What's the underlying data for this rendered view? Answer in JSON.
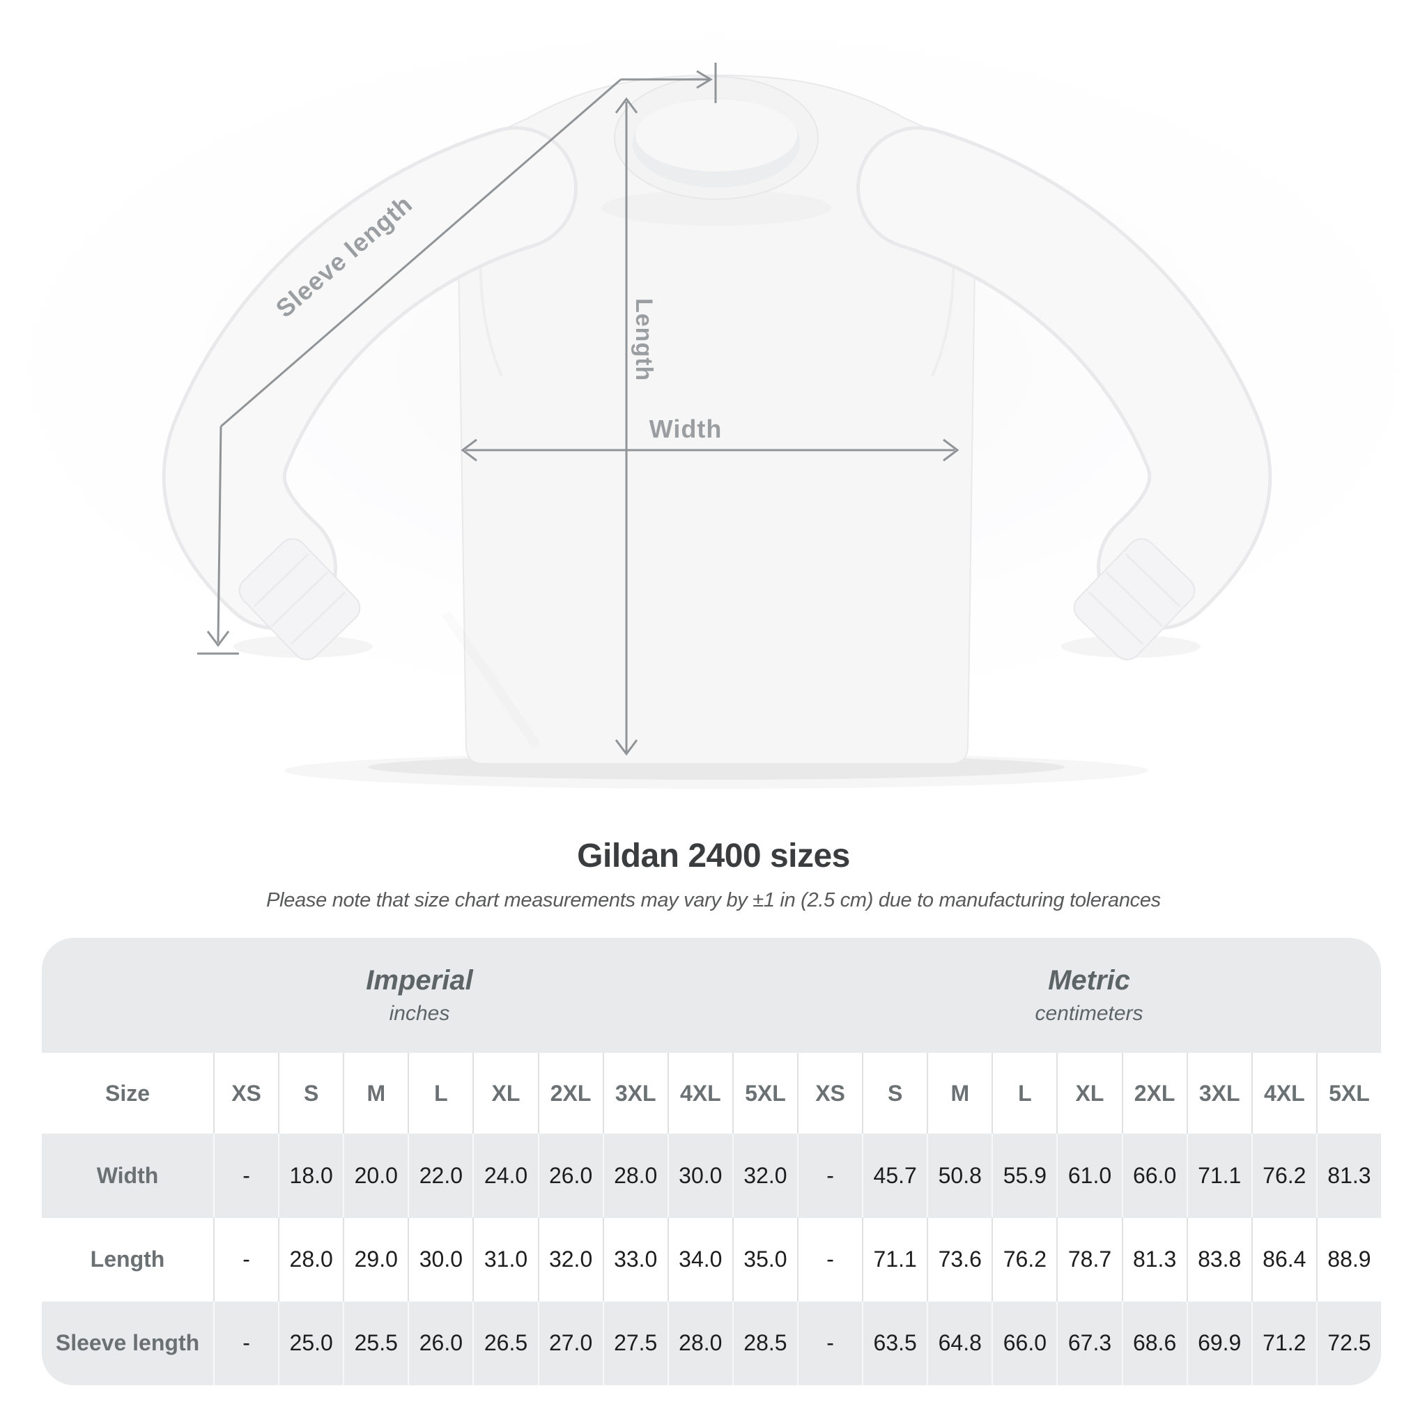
{
  "diagram": {
    "labels": {
      "sleeve_length": "Sleeve length",
      "length": "Length",
      "width": "Width"
    },
    "line_color": "#909496",
    "label_color": "#9a9ea1"
  },
  "chart_data": {
    "type": "table",
    "title": "Gildan 2400 sizes",
    "note": "Please note that size chart measurements may vary by ±1 in (2.5 cm) due to manufacturing tolerances",
    "corner_label": "Size",
    "unit_groups": [
      {
        "system": "Imperial",
        "unit": "inches"
      },
      {
        "system": "Metric",
        "unit": "centimeters"
      }
    ],
    "size_headers": [
      "XS",
      "S",
      "M",
      "L",
      "XL",
      "2XL",
      "3XL",
      "4XL",
      "5XL",
      "XS",
      "S",
      "M",
      "L",
      "XL",
      "2XL",
      "3XL",
      "4XL",
      "5XL"
    ],
    "rows": [
      {
        "label": "Width",
        "values": [
          "-",
          "18.0",
          "20.0",
          "22.0",
          "24.0",
          "26.0",
          "28.0",
          "30.0",
          "32.0",
          "-",
          "45.7",
          "50.8",
          "55.9",
          "61.0",
          "66.0",
          "71.1",
          "76.2",
          "81.3"
        ]
      },
      {
        "label": "Length",
        "values": [
          "-",
          "28.0",
          "29.0",
          "30.0",
          "31.0",
          "32.0",
          "33.0",
          "34.0",
          "35.0",
          "-",
          "71.1",
          "73.6",
          "76.2",
          "78.7",
          "81.3",
          "83.8",
          "86.4",
          "88.9"
        ]
      },
      {
        "label": "Sleeve length",
        "values": [
          "-",
          "25.0",
          "25.5",
          "26.0",
          "26.5",
          "27.0",
          "27.5",
          "28.0",
          "28.5",
          "-",
          "63.5",
          "64.8",
          "66.0",
          "67.3",
          "68.6",
          "69.9",
          "71.2",
          "72.5"
        ]
      }
    ],
    "table_colors": {
      "stripe": "#e9eaeb",
      "header_text": "#6b7173",
      "value_text": "#1d1d1d",
      "unit_header_text": "#5d6466"
    }
  }
}
